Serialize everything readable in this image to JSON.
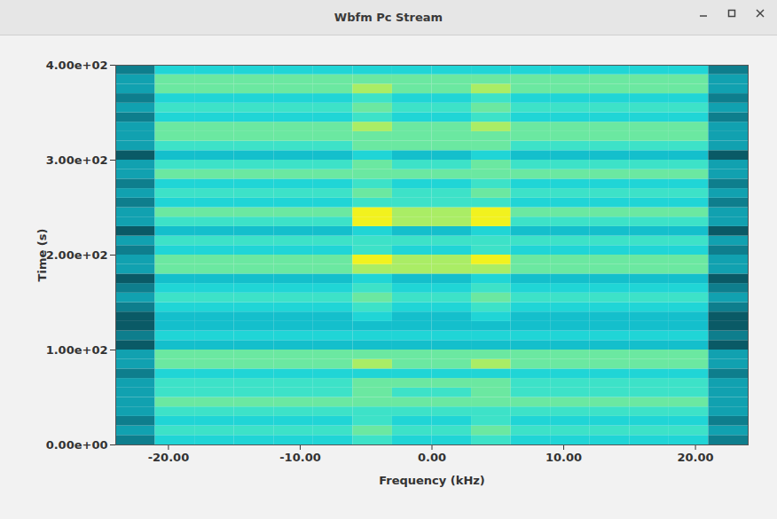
{
  "chart_data": {
    "type": "heatmap",
    "title": "Wbfm Pc Stream",
    "x_label": "Frequency (kHz)",
    "y_label": "Time (s)",
    "xlim": [
      -24,
      24
    ],
    "ylim": [
      0,
      400
    ],
    "xticks": [
      {
        "value": -20,
        "label": "-20.00"
      },
      {
        "value": -10,
        "label": "-10.00"
      },
      {
        "value": 0,
        "label": "0.00"
      },
      {
        "value": 10,
        "label": "10.00"
      },
      {
        "value": 20,
        "label": "20.00"
      }
    ],
    "yticks": [
      {
        "value": 0,
        "label": "0.00e+00"
      },
      {
        "value": 100,
        "label": "1.00e+02"
      },
      {
        "value": 200,
        "label": "2.00e+02"
      },
      {
        "value": 300,
        "label": "3.00e+02"
      },
      {
        "value": 400,
        "label": "4.00e+02"
      }
    ],
    "x_edges": [
      -24,
      -21,
      -18,
      -15,
      -12,
      -9,
      -6,
      -3,
      0,
      3,
      6,
      9,
      12,
      15,
      18,
      21,
      24
    ],
    "y_edges": [
      0,
      10,
      20,
      30,
      40,
      50,
      60,
      70,
      80,
      90,
      100,
      110,
      120,
      130,
      140,
      150,
      160,
      170,
      180,
      190,
      200,
      210,
      220,
      230,
      240,
      250,
      260,
      270,
      280,
      290,
      300,
      310,
      320,
      330,
      340,
      350,
      360,
      370,
      380,
      390,
      400
    ],
    "cells": [
      [
        2,
        5,
        5,
        5,
        5,
        5,
        6,
        5,
        5,
        6,
        5,
        5,
        5,
        5,
        5,
        2
      ],
      [
        3,
        6,
        6,
        6,
        6,
        6,
        7,
        6,
        6,
        7,
        6,
        6,
        6,
        6,
        6,
        3
      ],
      [
        2,
        5,
        5,
        5,
        5,
        5,
        6,
        5,
        5,
        6,
        5,
        5,
        5,
        5,
        5,
        2
      ],
      [
        3,
        6,
        6,
        6,
        6,
        6,
        6,
        6,
        6,
        6,
        6,
        6,
        6,
        6,
        6,
        3
      ],
      [
        3,
        7,
        7,
        7,
        7,
        7,
        7,
        7,
        7,
        7,
        7,
        7,
        7,
        7,
        7,
        3
      ],
      [
        3,
        6,
        6,
        6,
        6,
        6,
        7,
        6,
        6,
        7,
        6,
        6,
        6,
        6,
        6,
        3
      ],
      [
        3,
        6,
        6,
        6,
        6,
        6,
        7,
        7,
        7,
        7,
        6,
        6,
        6,
        6,
        6,
        3
      ],
      [
        2,
        5,
        5,
        5,
        5,
        5,
        5,
        5,
        5,
        5,
        5,
        5,
        5,
        5,
        5,
        2
      ],
      [
        3,
        7,
        7,
        7,
        7,
        7,
        8,
        7,
        7,
        8,
        7,
        7,
        7,
        7,
        7,
        3
      ],
      [
        3,
        7,
        7,
        7,
        7,
        7,
        7,
        7,
        7,
        7,
        7,
        7,
        7,
        7,
        7,
        3
      ],
      [
        1,
        4,
        4,
        4,
        4,
        4,
        4,
        4,
        4,
        4,
        4,
        4,
        4,
        4,
        4,
        1
      ],
      [
        2,
        5,
        5,
        5,
        5,
        5,
        5,
        5,
        5,
        5,
        5,
        5,
        5,
        5,
        5,
        2
      ],
      [
        1,
        4,
        4,
        4,
        4,
        4,
        4,
        4,
        4,
        4,
        4,
        4,
        4,
        4,
        4,
        1
      ],
      [
        1,
        4,
        4,
        4,
        4,
        4,
        5,
        4,
        4,
        5,
        4,
        4,
        4,
        4,
        4,
        1
      ],
      [
        2,
        5,
        5,
        5,
        5,
        5,
        6,
        5,
        5,
        6,
        5,
        5,
        5,
        5,
        5,
        2
      ],
      [
        3,
        6,
        6,
        6,
        6,
        6,
        7,
        6,
        6,
        7,
        6,
        6,
        6,
        6,
        6,
        3
      ],
      [
        2,
        5,
        5,
        5,
        5,
        5,
        6,
        5,
        5,
        6,
        5,
        5,
        5,
        5,
        5,
        2
      ],
      [
        1,
        4,
        4,
        4,
        4,
        4,
        5,
        4,
        4,
        5,
        4,
        4,
        4,
        4,
        4,
        1
      ],
      [
        3,
        7,
        7,
        7,
        7,
        7,
        8,
        8,
        8,
        8,
        7,
        7,
        7,
        7,
        7,
        3
      ],
      [
        3,
        7,
        7,
        7,
        7,
        7,
        9,
        8,
        8,
        9,
        7,
        7,
        7,
        7,
        7,
        3
      ],
      [
        2,
        5,
        5,
        5,
        5,
        5,
        6,
        5,
        5,
        6,
        5,
        5,
        5,
        5,
        5,
        2
      ],
      [
        3,
        6,
        6,
        6,
        6,
        6,
        6,
        6,
        6,
        6,
        6,
        6,
        6,
        6,
        6,
        3
      ],
      [
        1,
        4,
        4,
        4,
        4,
        4,
        5,
        4,
        4,
        5,
        4,
        4,
        4,
        4,
        4,
        1
      ],
      [
        3,
        6,
        6,
        6,
        6,
        6,
        9,
        8,
        8,
        9,
        6,
        6,
        6,
        6,
        6,
        3
      ],
      [
        3,
        7,
        7,
        7,
        7,
        7,
        9,
        8,
        8,
        9,
        7,
        7,
        7,
        7,
        7,
        3
      ],
      [
        2,
        5,
        5,
        5,
        5,
        5,
        6,
        6,
        6,
        6,
        5,
        5,
        5,
        5,
        5,
        2
      ],
      [
        3,
        6,
        6,
        6,
        6,
        6,
        7,
        6,
        6,
        7,
        6,
        6,
        6,
        6,
        6,
        3
      ],
      [
        2,
        5,
        5,
        5,
        5,
        5,
        6,
        5,
        5,
        6,
        5,
        5,
        5,
        5,
        5,
        2
      ],
      [
        3,
        7,
        7,
        7,
        7,
        7,
        7,
        7,
        7,
        7,
        7,
        7,
        7,
        7,
        7,
        3
      ],
      [
        3,
        6,
        6,
        6,
        6,
        6,
        7,
        6,
        6,
        7,
        6,
        6,
        6,
        6,
        6,
        3
      ],
      [
        1,
        4,
        4,
        4,
        4,
        4,
        5,
        4,
        4,
        5,
        4,
        4,
        4,
        4,
        4,
        1
      ],
      [
        3,
        6,
        6,
        6,
        6,
        6,
        7,
        7,
        7,
        7,
        6,
        6,
        6,
        6,
        6,
        3
      ],
      [
        3,
        7,
        7,
        7,
        7,
        7,
        7,
        7,
        7,
        7,
        7,
        7,
        7,
        7,
        7,
        3
      ],
      [
        3,
        7,
        7,
        7,
        7,
        7,
        8,
        7,
        7,
        8,
        7,
        7,
        7,
        7,
        7,
        3
      ],
      [
        2,
        5,
        5,
        5,
        5,
        5,
        6,
        5,
        5,
        6,
        5,
        5,
        5,
        5,
        5,
        2
      ],
      [
        3,
        6,
        6,
        6,
        6,
        6,
        7,
        6,
        6,
        7,
        6,
        6,
        6,
        6,
        6,
        3
      ],
      [
        2,
        5,
        5,
        5,
        5,
        5,
        6,
        5,
        5,
        6,
        5,
        5,
        5,
        5,
        5,
        2
      ],
      [
        3,
        7,
        7,
        7,
        7,
        7,
        8,
        7,
        7,
        8,
        7,
        7,
        7,
        7,
        7,
        3
      ],
      [
        3,
        7,
        7,
        7,
        7,
        7,
        7,
        7,
        7,
        7,
        7,
        7,
        7,
        7,
        7,
        3
      ],
      [
        2,
        5,
        5,
        5,
        5,
        5,
        5,
        5,
        5,
        5,
        5,
        5,
        5,
        5,
        5,
        2
      ]
    ]
  }
}
